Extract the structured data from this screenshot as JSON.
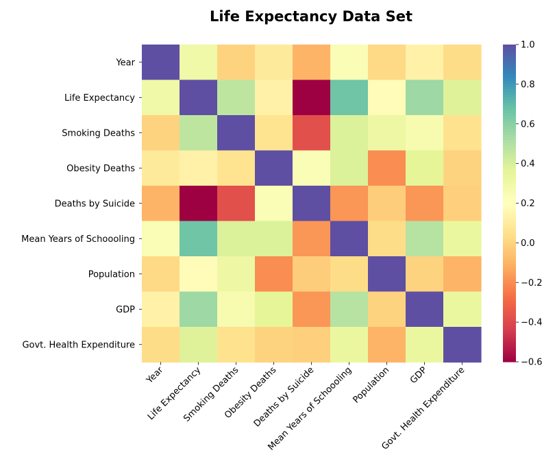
{
  "chart_data": {
    "type": "heatmap",
    "title": "Life Expectancy Data Set",
    "xlabel": "",
    "ylabel": "",
    "variables": [
      "Year",
      "Life Expectancy",
      "Smoking Deaths",
      "Obesity Deaths",
      "Deaths by Suicide",
      "Mean Years of Schoooling",
      "Population",
      "GDP",
      "Govt. Health Expenditure"
    ],
    "values": [
      [
        1.0,
        0.3,
        0.0,
        0.09,
        -0.1,
        0.24,
        0.02,
        0.13,
        0.03
      ],
      [
        0.3,
        1.0,
        0.47,
        0.13,
        -0.6,
        0.66,
        0.18,
        0.55,
        0.38
      ],
      [
        0.0,
        0.47,
        1.0,
        0.06,
        -0.38,
        0.39,
        0.31,
        0.26,
        0.05
      ],
      [
        0.09,
        0.13,
        0.06,
        1.0,
        0.24,
        0.39,
        -0.2,
        0.36,
        0.0
      ],
      [
        -0.1,
        -0.6,
        -0.38,
        0.24,
        1.0,
        -0.18,
        -0.02,
        -0.18,
        -0.01
      ],
      [
        0.24,
        0.66,
        0.39,
        0.39,
        -0.18,
        1.0,
        0.03,
        0.49,
        0.33
      ],
      [
        0.02,
        0.18,
        0.31,
        -0.2,
        -0.02,
        0.03,
        1.0,
        0.0,
        -0.1
      ],
      [
        0.13,
        0.55,
        0.26,
        0.36,
        -0.18,
        0.49,
        0.0,
        1.0,
        0.33
      ],
      [
        0.03,
        0.38,
        0.05,
        0.0,
        -0.01,
        0.33,
        -0.1,
        0.33,
        1.0
      ]
    ],
    "colormap": "Spectral",
    "vmin": -0.6,
    "vmax": 1.0,
    "colorbar_ticks": [
      "1.0",
      "0.8",
      "0.6",
      "0.4",
      "0.2",
      "0.0",
      "−0.2",
      "−0.4",
      "−0.6"
    ],
    "colorbar_tick_values": [
      1.0,
      0.8,
      0.6,
      0.4,
      0.2,
      0.0,
      -0.2,
      -0.4,
      -0.6
    ],
    "legend": "colorbar-right",
    "grid": false
  }
}
